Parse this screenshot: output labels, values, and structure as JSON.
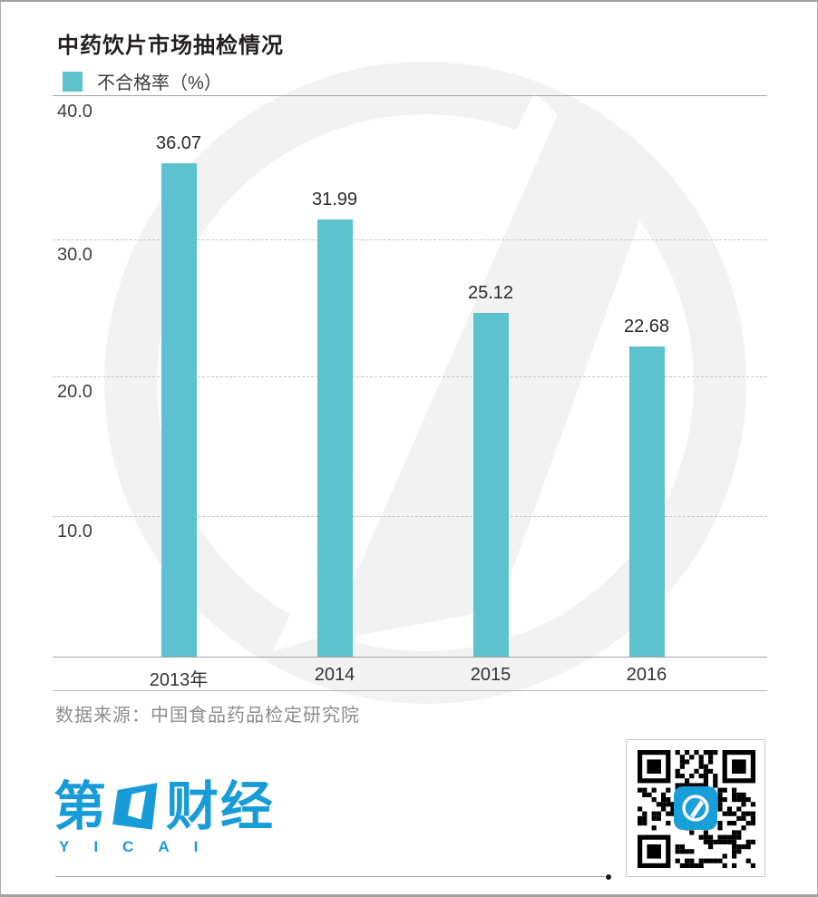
{
  "header": {
    "title": "中药饮片市场抽检情况"
  },
  "legend": {
    "label": "不合格率（%）"
  },
  "chart_data": {
    "type": "bar",
    "title": "中药饮片市场抽检情况",
    "series_name": "不合格率（%）",
    "categories": [
      "2013年",
      "2014",
      "2015",
      "2016"
    ],
    "values": [
      36.07,
      31.99,
      25.12,
      22.68
    ],
    "value_labels": [
      "36.07",
      "31.99",
      "25.12",
      "22.68"
    ],
    "ylim": [
      0,
      40
    ],
    "yticks": [
      40,
      30,
      20,
      10
    ],
    "ytick_labels": [
      "40.0",
      "30.0",
      "20.0",
      "10.0"
    ],
    "xlabel": "",
    "ylabel": "不合格率（%）",
    "grid": "horizontal-dashed",
    "legend_position": "top-left",
    "bar_color": "#5cc2ce"
  },
  "source": {
    "text": "数据来源：中国食品药品检定研究院"
  },
  "footer": {
    "logo_cn_left": "第",
    "logo_cn_right": "财经",
    "logo_latin": "YICAI"
  },
  "colors": {
    "bar": "#5cc2ce",
    "logo_blue": "#189cd8",
    "watermark": "#f2f2f2",
    "grid_dashed": "#c6c6c6",
    "axis_line": "#a3a3a3"
  },
  "icons": {
    "qr_center": "yicai-app-icon",
    "watermark": "yicai-logo-watermark"
  }
}
